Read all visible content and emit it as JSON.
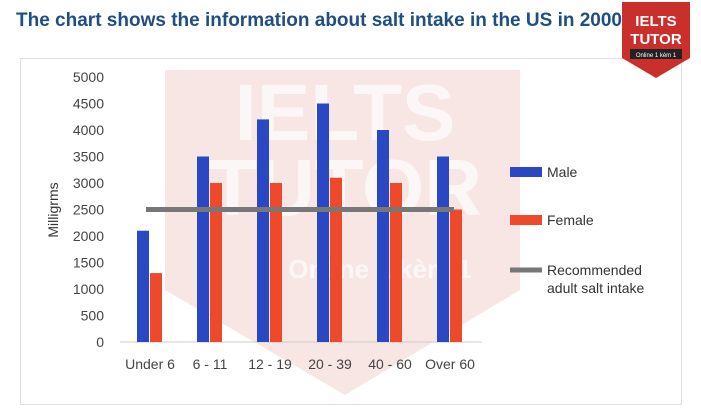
{
  "title": "The chart shows the information about salt intake in the US in 2000.",
  "logo": {
    "line1": "IELTS",
    "line2": "TUTOR",
    "line3": "Online 1 kèm 1"
  },
  "chart_data": {
    "type": "bar",
    "title": "",
    "xlabel": "",
    "ylabel": "Milligrms",
    "ylim": [
      0,
      5000
    ],
    "yticks": [
      0,
      500,
      1000,
      1500,
      2000,
      2500,
      3000,
      3500,
      4000,
      4500,
      5000
    ],
    "categories": [
      "Under 6",
      "6 - 11",
      "12 - 19",
      "20 - 39",
      "40 - 60",
      "Over 60"
    ],
    "series": [
      {
        "name": "Male",
        "values": [
          2100,
          3500,
          4200,
          4500,
          4000,
          3500
        ],
        "color": "#2a47c4"
      },
      {
        "name": "Female",
        "values": [
          1300,
          3000,
          3000,
          3100,
          3000,
          2500
        ],
        "color": "#ec4a2a"
      }
    ],
    "reference_line": {
      "name": "Recommended adult salt intake",
      "value": 2500,
      "color": "#777777"
    },
    "legend": "right",
    "grid": false
  }
}
